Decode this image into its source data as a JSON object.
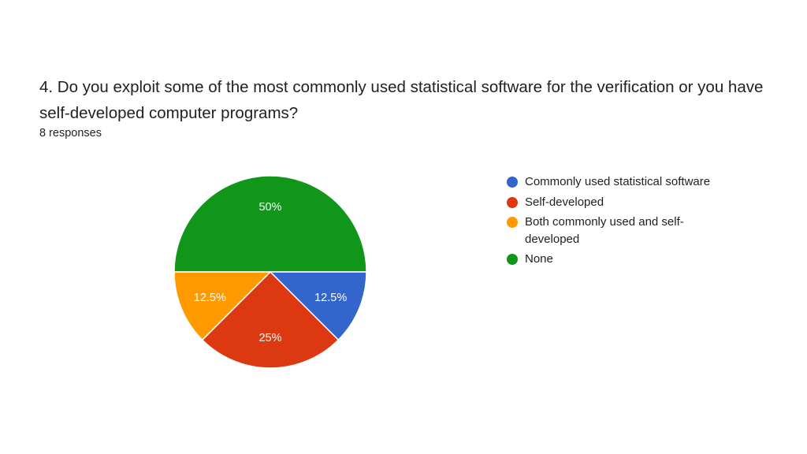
{
  "question": {
    "title": "4. Do you exploit some of the most commonly used statistical software for the verification or you have self-developed computer programs?",
    "responses": "8 responses"
  },
  "chart_data": {
    "type": "pie",
    "categories": [
      "Commonly used statistical software",
      "Self-developed",
      "Both commonly used and self-developed",
      "None"
    ],
    "values": [
      12.5,
      25,
      12.5,
      50
    ],
    "value_labels": [
      "12.5%",
      "25%",
      "12.5%",
      "50%"
    ],
    "colors": [
      "#3366cc",
      "#dc3912",
      "#ff9900",
      "#109618"
    ],
    "legend_position": "right"
  }
}
